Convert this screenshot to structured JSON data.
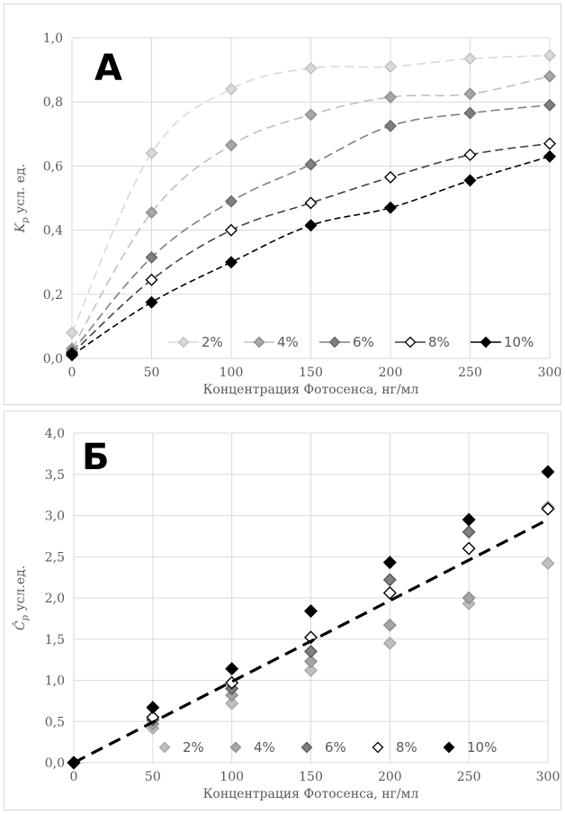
{
  "charts": [
    {
      "id": "A",
      "panel_label": "А",
      "type": "line",
      "xlabel": "Концентрация Фотосенса, нг/мл",
      "ylabel_main": "K",
      "ylabel_sub": "p",
      "ylabel_rest": " усл. ед.",
      "xlim": [
        0,
        300
      ],
      "ylim": [
        0,
        1.0
      ],
      "x_ticks": [
        "0",
        "50",
        "100",
        "150",
        "200",
        "250",
        "300"
      ],
      "y_ticks": [
        "0,0",
        "0,2",
        "0,4",
        "0,6",
        "0,8",
        "1,0"
      ],
      "grid": true,
      "legend_position": "bottom-right",
      "x": [
        0,
        50,
        100,
        150,
        200,
        250,
        300
      ],
      "series": [
        {
          "name": "2%",
          "values": [
            0.08,
            0.64,
            0.84,
            0.905,
            0.91,
            0.935,
            0.945
          ],
          "line_color": "#d9d9d9",
          "marker_fill": "#d9d9d9",
          "marker_stroke": "#bfbfbf"
        },
        {
          "name": "4%",
          "values": [
            0.03,
            0.455,
            0.665,
            0.76,
            0.815,
            0.825,
            0.88
          ],
          "line_color": "#bfbfbf",
          "marker_fill": "#a6a6a6",
          "marker_stroke": "#8c8c8c"
        },
        {
          "name": "6%",
          "values": [
            0.02,
            0.315,
            0.49,
            0.605,
            0.725,
            0.765,
            0.79
          ],
          "line_color": "#7f7f7f",
          "marker_fill": "#7f7f7f",
          "marker_stroke": "#666666"
        },
        {
          "name": "8%",
          "values": [
            0.015,
            0.245,
            0.4,
            0.485,
            0.565,
            0.635,
            0.67
          ],
          "line_color": "#404040",
          "marker_fill": "#ffffff",
          "marker_stroke": "#000000"
        },
        {
          "name": "10%",
          "values": [
            0.01,
            0.175,
            0.3,
            0.415,
            0.47,
            0.555,
            0.63
          ],
          "line_color": "#000000",
          "marker_fill": "#000000",
          "marker_stroke": "#000000"
        }
      ]
    },
    {
      "id": "B",
      "panel_label": "Б",
      "type": "scatter",
      "xlabel": "Концентрация Фотосенса, нг/мл",
      "ylabel_main": "Ĉ",
      "ylabel_sub": "p",
      "ylabel_rest": " усл.ед.",
      "xlim": [
        0,
        300
      ],
      "ylim": [
        0,
        4.0
      ],
      "x_ticks": [
        "0",
        "50",
        "100",
        "150",
        "200",
        "250",
        "300"
      ],
      "y_ticks": [
        "0,0",
        "0,5",
        "1,0",
        "1,5",
        "2,0",
        "2,5",
        "3,0",
        "3,5",
        "4,0"
      ],
      "grid": true,
      "legend_position": "bottom",
      "x": [
        0,
        50,
        100,
        150,
        200,
        250,
        300
      ],
      "trendline": {
        "x": [
          0,
          300
        ],
        "y": [
          0,
          2.95
        ],
        "style": "dashed",
        "color": "#000000"
      },
      "series": [
        {
          "name": "2%",
          "values": [
            0.0,
            0.42,
            0.72,
            1.12,
            1.45,
            1.93,
            2.42
          ],
          "marker_fill": "#bfbfbf",
          "marker_stroke": "#a6a6a6"
        },
        {
          "name": "4%",
          "values": [
            0.0,
            0.47,
            0.82,
            1.23,
            1.67,
            2.0,
            3.1
          ],
          "marker_fill": "#a6a6a6",
          "marker_stroke": "#8c8c8c"
        },
        {
          "name": "6%",
          "values": [
            0.0,
            0.52,
            0.9,
            1.35,
            2.22,
            2.8,
            3.08
          ],
          "marker_fill": "#7f7f7f",
          "marker_stroke": "#595959"
        },
        {
          "name": "8%",
          "values": [
            0.0,
            0.55,
            0.97,
            1.52,
            2.06,
            2.6,
            3.08
          ],
          "marker_fill": "#ffffff",
          "marker_stroke": "#000000"
        },
        {
          "name": "10%",
          "values": [
            0.0,
            0.67,
            1.14,
            1.84,
            2.43,
            2.95,
            3.53
          ],
          "marker_fill": "#000000",
          "marker_stroke": "#000000"
        }
      ]
    }
  ]
}
